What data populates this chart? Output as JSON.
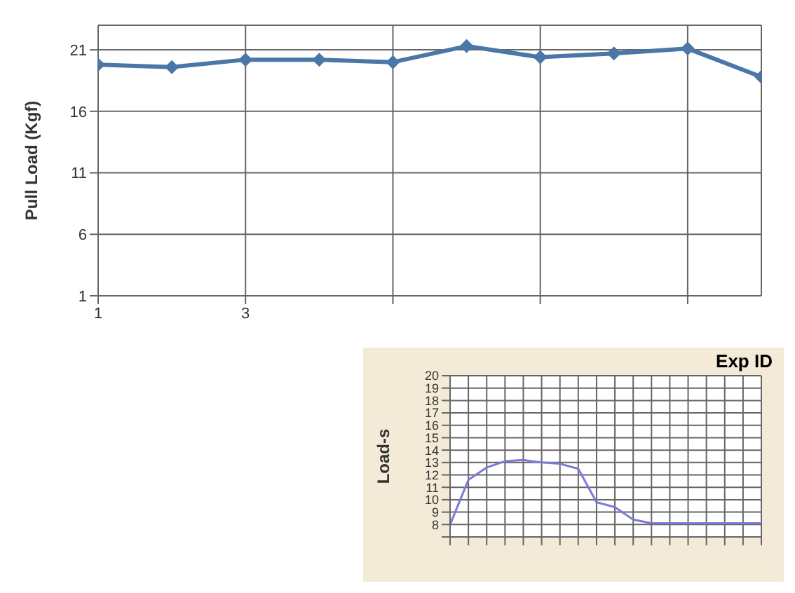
{
  "chart_data": [
    {
      "type": "line",
      "ylabel": "Pull Load (Kgf)",
      "x": [
        1,
        2,
        3,
        4,
        5,
        6,
        7,
        8,
        9,
        10
      ],
      "series": [
        {
          "color": "#4a76a8",
          "values": [
            19.8,
            19.6,
            20.2,
            20.2,
            20.0,
            21.3,
            20.4,
            20.7,
            21.1,
            18.8
          ]
        }
      ],
      "xlim": [
        1,
        10
      ],
      "xticks": [
        1,
        3,
        {
          "value": 5,
          "label": null
        },
        {
          "value": 7,
          "label": null
        },
        {
          "value": 9,
          "label": null
        }
      ],
      "ylim": [
        1,
        23
      ],
      "yticks": [
        1,
        6,
        11,
        16,
        21
      ],
      "grid": true,
      "marker": "diamond",
      "line_style": "solid"
    },
    {
      "type": "line",
      "title": "Exp ID",
      "ylabel": "Load-s",
      "categories": [
        null,
        null,
        null,
        null,
        null,
        null,
        null,
        null,
        null,
        null,
        null,
        null,
        null,
        null,
        null,
        null,
        null,
        null
      ],
      "series": [
        {
          "color": "#7b7bd6",
          "values": [
            8.0,
            11.6,
            12.6,
            13.1,
            13.2,
            13.0,
            12.9,
            12.5,
            9.8,
            9.4,
            8.4,
            8.1,
            8.1,
            8.1,
            8.1,
            8.1,
            8.1,
            8.1
          ]
        }
      ],
      "ylim": [
        7,
        20
      ],
      "yticks": [
        {
          "value": 7,
          "label": null
        },
        8,
        9,
        10,
        11,
        12,
        13,
        14,
        15,
        16,
        17,
        18,
        19,
        20
      ],
      "grid": true,
      "marker": "none",
      "line_style": "solid"
    }
  ]
}
